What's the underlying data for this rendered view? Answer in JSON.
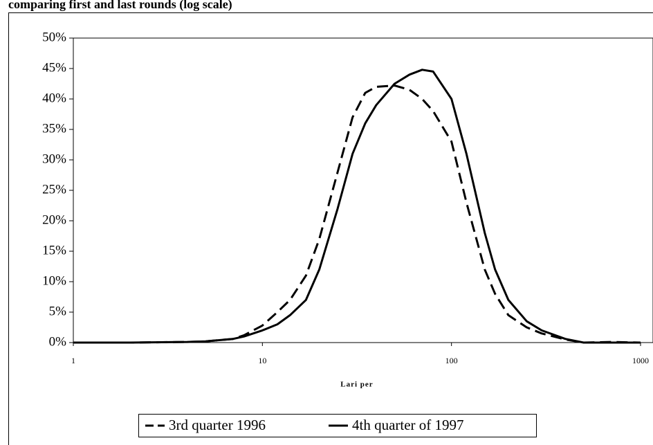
{
  "chart_data": {
    "type": "line",
    "title": "comparing first and last rounds (log scale)",
    "xlabel": "Lari per",
    "xscale": "log",
    "x": [
      1,
      2,
      4,
      5,
      7,
      8,
      10,
      12,
      14,
      17,
      20,
      25,
      30,
      35,
      40,
      50,
      60,
      70,
      80,
      100,
      120,
      150,
      170,
      200,
      250,
      300,
      400,
      500,
      700,
      1000
    ],
    "series": [
      {
        "name": "3rd quarter 1996",
        "color": "#000000",
        "dash": true,
        "values": [
          0,
          0,
          0.1,
          0.2,
          0.6,
          1.2,
          2.8,
          5,
          7,
          11,
          17,
          28,
          37,
          41,
          42,
          42.2,
          41.5,
          40,
          38,
          33,
          23,
          12,
          8,
          4.5,
          2.5,
          1.5,
          0.5,
          0,
          0.1,
          0
        ]
      },
      {
        "name": "4th quarter of 1997",
        "color": "#000000",
        "dash": false,
        "values": [
          0,
          0,
          0.1,
          0.2,
          0.6,
          1,
          2,
          3,
          4.5,
          7,
          12,
          22,
          31,
          36,
          39,
          42.5,
          44,
          44.8,
          44.5,
          40,
          31,
          18,
          12,
          7,
          3.5,
          2,
          0.6,
          0,
          0,
          0
        ]
      }
    ],
    "xlim": [
      1,
      1000
    ],
    "xticks": [
      1,
      10,
      100,
      1000
    ],
    "ylim": [
      0,
      50
    ],
    "yticks": [
      {
        "value": 0,
        "label": "0%"
      },
      {
        "value": 5,
        "label": "5%"
      },
      {
        "value": 10,
        "label": "10%"
      },
      {
        "value": 15,
        "label": "15%"
      },
      {
        "value": 20,
        "label": "20%"
      },
      {
        "value": 25,
        "label": "25%"
      },
      {
        "value": 30,
        "label": "30%"
      },
      {
        "value": 35,
        "label": "35%"
      },
      {
        "value": 40,
        "label": "40%"
      },
      {
        "value": 45,
        "label": "45%"
      },
      {
        "value": 50,
        "label": "50%"
      }
    ],
    "grid": false,
    "legend": "bottom"
  }
}
